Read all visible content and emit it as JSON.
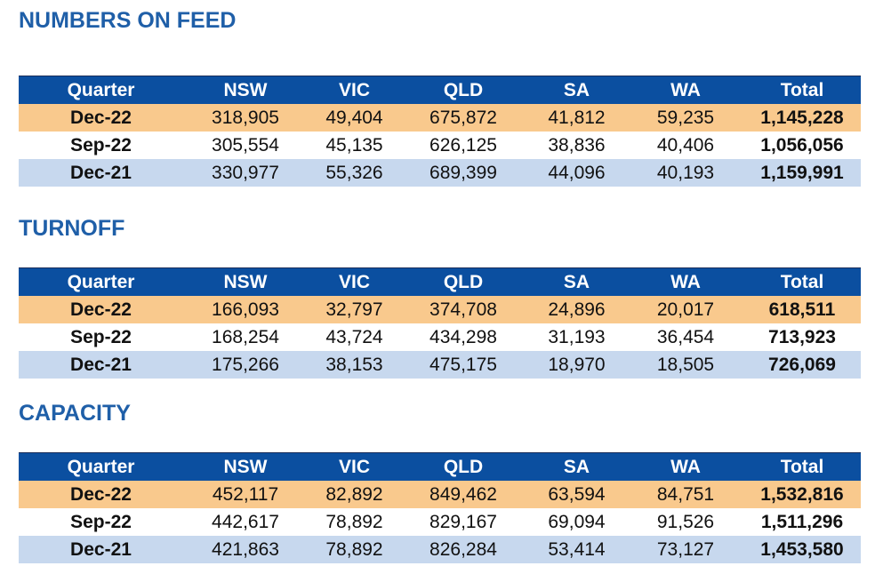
{
  "headers": [
    "Quarter",
    "NSW",
    "VIC",
    "QLD",
    "SA",
    "WA",
    "Total"
  ],
  "colors": {
    "title": "#1f5fa8",
    "header_bg": "#0b4fa0",
    "row_orange": "#f9c98d",
    "row_blue": "#c7d8ee"
  },
  "sections": [
    {
      "title": "NUMBERS ON FEED",
      "rows": [
        [
          "Dec-22",
          "318,905",
          "49,404",
          "675,872",
          "41,812",
          "59,235",
          "1,145,228"
        ],
        [
          "Sep-22",
          "305,554",
          "45,135",
          "626,125",
          "38,836",
          "40,406",
          "1,056,056"
        ],
        [
          "Dec-21",
          "330,977",
          "55,326",
          "689,399",
          "44,096",
          "40,193",
          "1,159,991"
        ]
      ]
    },
    {
      "title": "TURNOFF",
      "rows": [
        [
          "Dec-22",
          "166,093",
          "32,797",
          "374,708",
          "24,896",
          "20,017",
          "618,511"
        ],
        [
          "Sep-22",
          "168,254",
          "43,724",
          "434,298",
          "31,193",
          "36,454",
          "713,923"
        ],
        [
          "Dec-21",
          "175,266",
          "38,153",
          "475,175",
          "18,970",
          "18,505",
          "726,069"
        ]
      ]
    },
    {
      "title": "CAPACITY",
      "rows": [
        [
          "Dec-22",
          "452,117",
          "82,892",
          "849,462",
          "63,594",
          "84,751",
          "1,532,816"
        ],
        [
          "Sep-22",
          "442,617",
          "78,892",
          "829,167",
          "69,094",
          "91,526",
          "1,511,296"
        ],
        [
          "Dec-21",
          "421,863",
          "78,892",
          "826,284",
          "53,414",
          "73,127",
          "1,453,580"
        ]
      ]
    }
  ]
}
